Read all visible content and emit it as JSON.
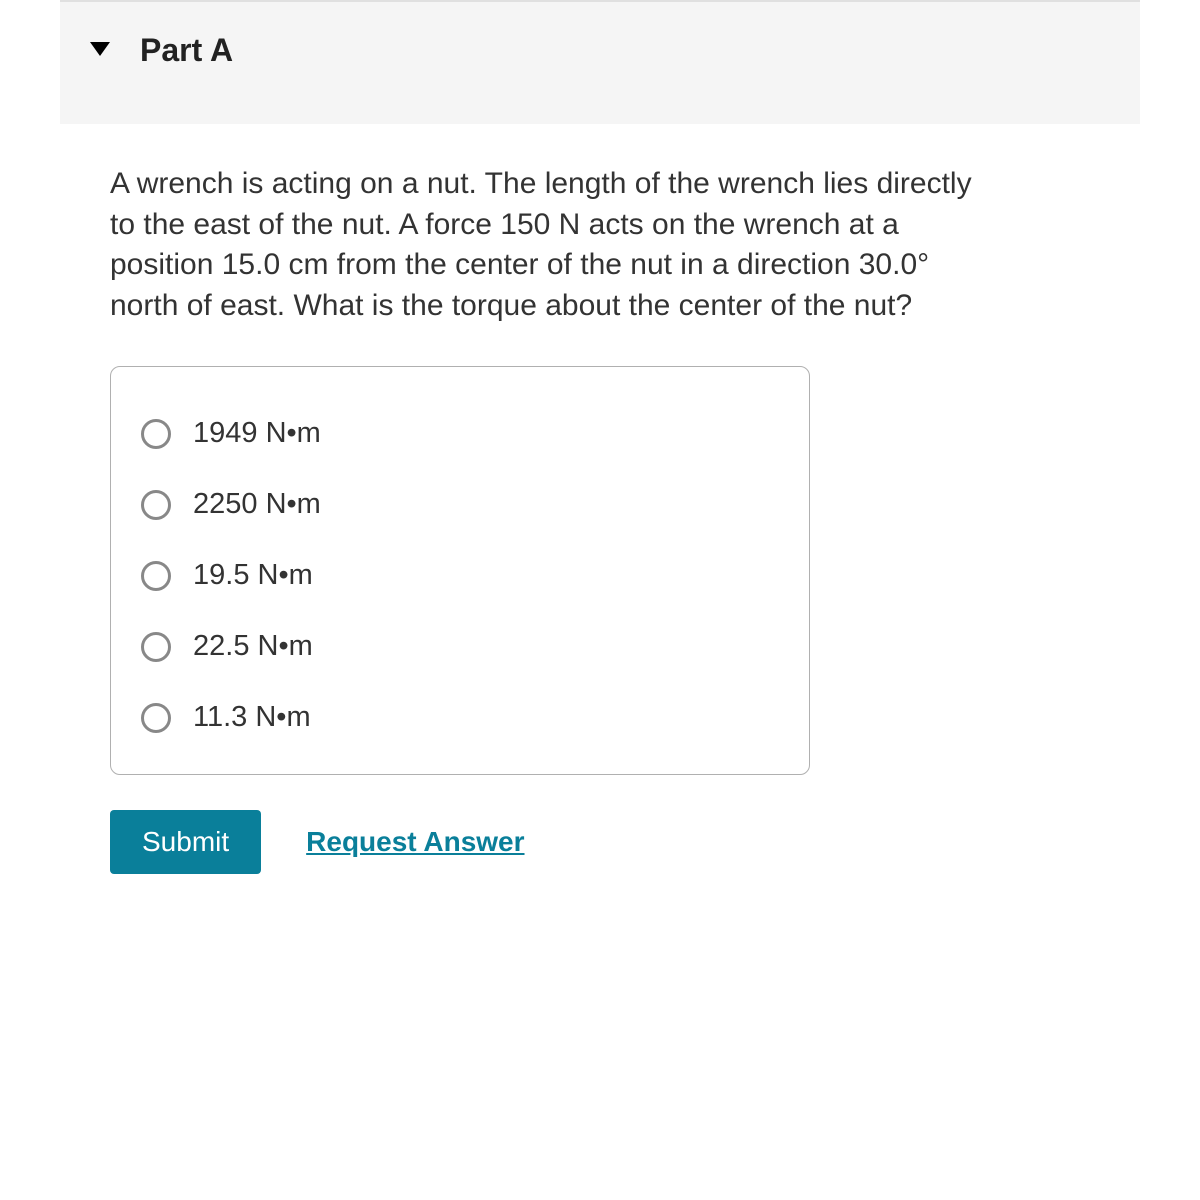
{
  "header": {
    "part_label": "Part A"
  },
  "question": {
    "text": "A wrench is acting on a nut. The length of the wrench lies directly to the east of the nut. A force 150 N acts on the wrench at a position 15.0 cm from the center of the nut in a direction 30.0° north of east. What is the torque about the center of the nut?"
  },
  "options": [
    {
      "label": "1949 N•m"
    },
    {
      "label": "2250 N•m"
    },
    {
      "label": "19.5 N•m"
    },
    {
      "label": "22.5 N•m"
    },
    {
      "label": "11.3 N•m"
    }
  ],
  "actions": {
    "submit_label": "Submit",
    "request_label": "Request Answer"
  },
  "colors": {
    "accent": "#0a7f9a",
    "header_bg": "#f5f5f5",
    "border": "#b0b0b0",
    "radio_border": "#888888",
    "text": "#333333"
  }
}
